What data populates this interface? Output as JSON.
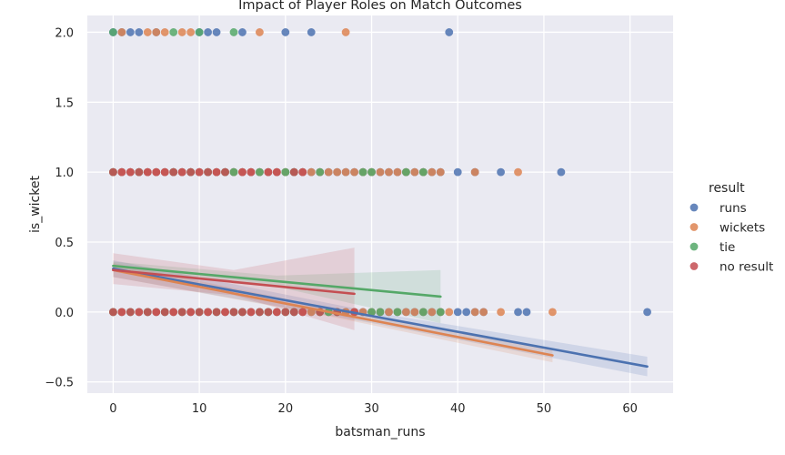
{
  "chart_data": {
    "type": "scatter",
    "title": "Impact of Player Roles on Match Outcomes",
    "xlabel": "batsman_runs",
    "ylabel": "is_wicket",
    "xlim": [
      -3,
      65
    ],
    "ylim": [
      -0.58,
      2.12
    ],
    "x_ticks": [
      0,
      10,
      20,
      30,
      40,
      50,
      60
    ],
    "y_ticks": [
      -0.5,
      0.0,
      0.5,
      1.0,
      1.5,
      2.0
    ],
    "y_tick_labels": [
      "−0.5",
      "0.0",
      "0.5",
      "1.0",
      "1.5",
      "2.0"
    ],
    "background": "#eaeaf2",
    "grid": true,
    "legend_title": "result",
    "legend_position": "right",
    "series": [
      {
        "name": "runs",
        "color": "#4c72b0",
        "points": {
          "2": [
            0,
            1,
            2,
            3,
            5,
            10,
            11,
            12,
            15,
            20,
            23,
            39
          ],
          "1": [
            0,
            1,
            2,
            3,
            4,
            5,
            6,
            7,
            8,
            9,
            10,
            11,
            12,
            13,
            14,
            15,
            16,
            17,
            18,
            19,
            20,
            21,
            22,
            23,
            24,
            25,
            26,
            27,
            28,
            29,
            30,
            31,
            32,
            33,
            34,
            35,
            36,
            37,
            38,
            40,
            42,
            45,
            52
          ],
          "0": [
            0,
            1,
            2,
            3,
            4,
            5,
            6,
            7,
            8,
            9,
            10,
            11,
            12,
            13,
            14,
            15,
            16,
            17,
            18,
            19,
            20,
            21,
            22,
            23,
            24,
            25,
            26,
            27,
            28,
            29,
            30,
            31,
            32,
            33,
            34,
            35,
            36,
            37,
            38,
            40,
            41,
            42,
            43,
            47,
            48,
            62
          ]
        },
        "regression": {
          "x": [
            0,
            62
          ],
          "y": [
            0.31,
            -0.39
          ],
          "ci": [
            [
              0,
              0.25,
              0.37
            ],
            [
              31,
              -0.09,
              -0.01
            ],
            [
              62,
              -0.46,
              -0.32
            ]
          ]
        }
      },
      {
        "name": "wickets",
        "color": "#dd8452",
        "points": {
          "2": [
            1,
            4,
            5,
            6,
            8,
            9,
            17,
            27
          ],
          "1": [
            0,
            1,
            2,
            3,
            4,
            5,
            6,
            7,
            8,
            9,
            10,
            11,
            12,
            13,
            14,
            15,
            16,
            17,
            18,
            19,
            20,
            21,
            22,
            23,
            24,
            25,
            26,
            27,
            28,
            29,
            30,
            31,
            32,
            33,
            34,
            35,
            36,
            37,
            38,
            42,
            47
          ],
          "0": [
            0,
            1,
            2,
            3,
            4,
            5,
            6,
            7,
            8,
            9,
            10,
            11,
            12,
            13,
            14,
            15,
            16,
            17,
            18,
            19,
            20,
            21,
            22,
            23,
            24,
            25,
            26,
            27,
            28,
            29,
            30,
            31,
            32,
            33,
            34,
            35,
            36,
            37,
            38,
            39,
            42,
            43,
            45,
            51
          ]
        },
        "regression": {
          "x": [
            0,
            51
          ],
          "y": [
            0.3,
            -0.31
          ],
          "ci": [
            [
              0,
              0.25,
              0.35
            ],
            [
              25,
              -0.03,
              0.03
            ],
            [
              51,
              -0.36,
              -0.26
            ]
          ]
        }
      },
      {
        "name": "tie",
        "color": "#55a868",
        "points": {
          "2": [
            0,
            7,
            10,
            14
          ],
          "1": [
            0,
            3,
            7,
            9,
            11,
            13,
            14,
            17,
            20,
            21,
            24,
            29,
            30,
            34,
            36
          ],
          "0": [
            0,
            2,
            4,
            6,
            8,
            10,
            12,
            14,
            15,
            17,
            18,
            20,
            21,
            24,
            25,
            26,
            30,
            31,
            33,
            36,
            38
          ]
        },
        "regression": {
          "x": [
            0,
            38
          ],
          "y": [
            0.33,
            0.11
          ],
          "ci": [
            [
              0,
              0.3,
              0.36
            ],
            [
              19,
              0.18,
              0.26
            ],
            [
              38,
              -0.08,
              0.3
            ]
          ]
        }
      },
      {
        "name": "no result",
        "color": "#c44e52",
        "points": {
          "2": [],
          "1": [
            0,
            1,
            2,
            3,
            4,
            5,
            6,
            7,
            8,
            9,
            10,
            11,
            12,
            13,
            15,
            16,
            18,
            19,
            21,
            22
          ],
          "0": [
            0,
            1,
            2,
            3,
            4,
            5,
            6,
            7,
            8,
            9,
            10,
            11,
            12,
            13,
            14,
            15,
            16,
            17,
            18,
            19,
            20,
            21,
            22,
            24,
            26,
            28
          ]
        },
        "regression": {
          "x": [
            0,
            28
          ],
          "y": [
            0.3,
            0.13
          ],
          "ci": [
            [
              0,
              0.2,
              0.42
            ],
            [
              14,
              0.12,
              0.3
            ],
            [
              28,
              -0.13,
              0.46
            ]
          ]
        }
      }
    ]
  }
}
